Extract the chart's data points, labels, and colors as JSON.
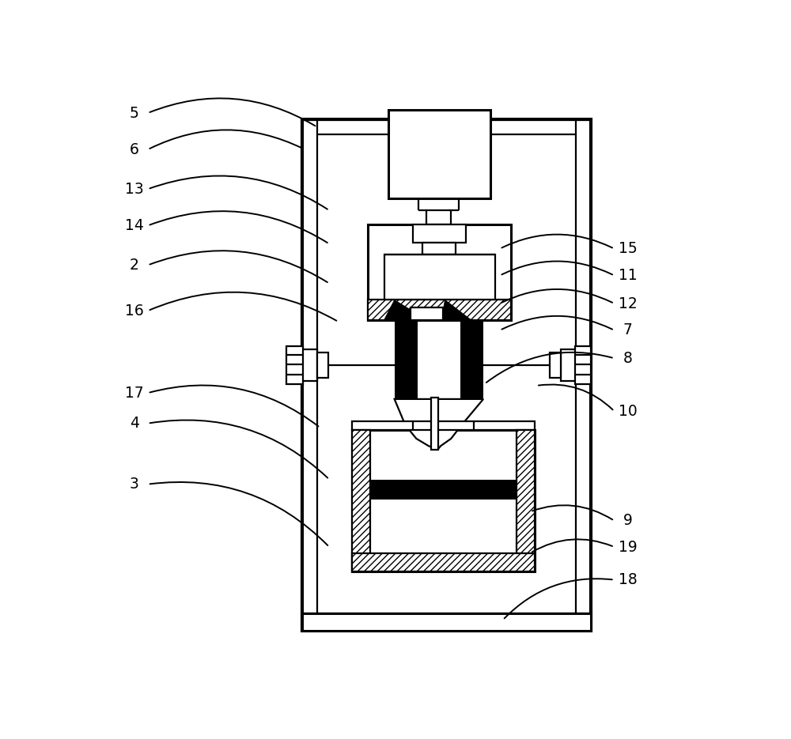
{
  "bg_color": "#ffffff",
  "lw": 1.6,
  "lw2": 2.2,
  "lw3": 3.0,
  "left_labels": [
    [
      "5",
      0.55,
      8.95,
      3.55,
      8.72
    ],
    [
      "6",
      0.55,
      8.35,
      3.35,
      8.35
    ],
    [
      "13",
      0.55,
      7.7,
      3.75,
      7.35
    ],
    [
      "14",
      0.55,
      7.1,
      3.75,
      6.8
    ],
    [
      "2",
      0.55,
      6.45,
      3.75,
      6.15
    ],
    [
      "16",
      0.55,
      5.7,
      3.9,
      5.52
    ],
    [
      "17",
      0.55,
      4.35,
      3.6,
      3.78
    ],
    [
      "4",
      0.55,
      3.85,
      3.75,
      2.93
    ],
    [
      "3",
      0.55,
      2.85,
      3.75,
      1.82
    ]
  ],
  "right_labels": [
    [
      "15",
      8.65,
      6.72,
      6.55,
      6.72
    ],
    [
      "11",
      8.65,
      6.28,
      6.55,
      6.28
    ],
    [
      "12",
      8.65,
      5.82,
      6.55,
      5.82
    ],
    [
      "7",
      8.65,
      5.38,
      6.55,
      5.38
    ],
    [
      "8",
      8.65,
      4.92,
      6.3,
      4.5
    ],
    [
      "10",
      8.65,
      4.05,
      7.15,
      4.47
    ],
    [
      "9",
      8.65,
      2.25,
      7.05,
      2.4
    ],
    [
      "19",
      8.65,
      1.82,
      7.05,
      1.72
    ],
    [
      "18",
      8.65,
      1.28,
      6.6,
      0.62
    ]
  ]
}
